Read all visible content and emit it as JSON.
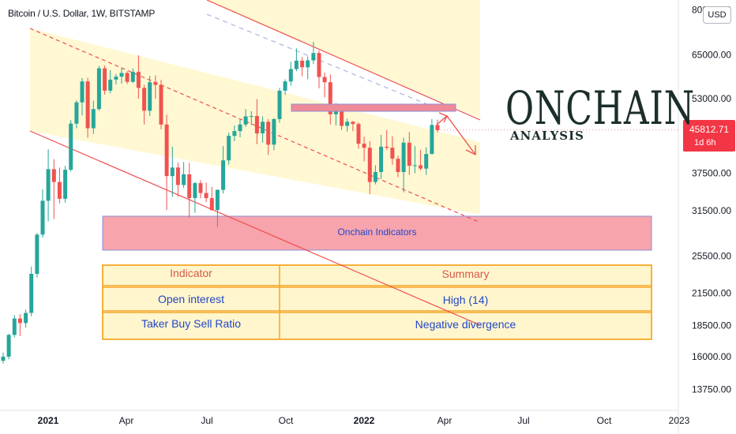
{
  "header": {
    "title": "Bitcoin / U.S. Dollar, 1W, BITSTAMP",
    "currency_button": "USD"
  },
  "current_price": {
    "value": "45812.71",
    "countdown": "1d 6h",
    "color": "#f23645"
  },
  "overlay": {
    "title": "ONCHAIN",
    "subtitle": "ANALYSIS",
    "band_label": "Onchain Indicators",
    "table": {
      "headers": [
        "Indicator",
        "Summary"
      ],
      "rows": [
        [
          "Open interest",
          "High (14)"
        ],
        [
          "Taker Buy Sell Ratio",
          "Negative divergence"
        ]
      ]
    }
  },
  "chart_data": {
    "type": "candlestick",
    "title": "Bitcoin / U.S. Dollar, 1W, BITSTAMP",
    "y_scale": "log",
    "ylim": [
      12500,
      80000
    ],
    "y_ticks": [
      13750,
      16000,
      18500,
      21500,
      25500,
      31500,
      37500,
      45000,
      53000,
      65000,
      80000
    ],
    "y_tick_labels": [
      "13750.00",
      "16000.00",
      "18500.00",
      "21500.00",
      "25500.00",
      "31500.00",
      "37500.00",
      "45000.00",
      "53000.00",
      "65000.00",
      "80000.00"
    ],
    "x_tick_labels": [
      "2021",
      "Apr",
      "Jul",
      "Oct",
      "2022",
      "Apr",
      "Jul",
      "Oct",
      "2023"
    ],
    "up_color": "#26a69a",
    "down_color": "#ef5350",
    "ohlc_weekly": [
      [
        15700,
        16300,
        15500,
        16000
      ],
      [
        16000,
        17800,
        15800,
        17700
      ],
      [
        17700,
        19400,
        17500,
        19100
      ],
      [
        19100,
        19500,
        17600,
        18700
      ],
      [
        18700,
        19900,
        18300,
        19600
      ],
      [
        19600,
        24300,
        19300,
        23500
      ],
      [
        23500,
        28400,
        23100,
        28200
      ],
      [
        28200,
        34800,
        27800,
        33000
      ],
      [
        33000,
        41900,
        30000,
        38200
      ],
      [
        38200,
        40000,
        30300,
        36000
      ],
      [
        36000,
        38500,
        32600,
        33300
      ],
      [
        33300,
        38800,
        32700,
        38100
      ],
      [
        38100,
        48000,
        37800,
        47200
      ],
      [
        47200,
        52600,
        46200,
        52100
      ],
      [
        52100,
        58300,
        49000,
        57400
      ],
      [
        57400,
        58400,
        44200,
        46200
      ],
      [
        46200,
        52500,
        45000,
        50500
      ],
      [
        50500,
        61700,
        50100,
        61000
      ],
      [
        61000,
        61800,
        54000,
        55000
      ],
      [
        55000,
        60500,
        54300,
        57900
      ],
      [
        57900,
        59400,
        56600,
        58700
      ],
      [
        58700,
        61300,
        56800,
        59700
      ],
      [
        59700,
        60200,
        56700,
        57300
      ],
      [
        57300,
        61000,
        57000,
        60000
      ],
      [
        60000,
        64800,
        53000,
        55700
      ],
      [
        55700,
        56500,
        47000,
        50100
      ],
      [
        50100,
        58900,
        48900,
        57200
      ],
      [
        57200,
        59000,
        53000,
        56500
      ],
      [
        56500,
        57800,
        46000,
        47000
      ],
      [
        47000,
        49200,
        31600,
        37000
      ],
      [
        37000,
        42400,
        33600,
        38500
      ],
      [
        38500,
        39400,
        33600,
        35500
      ],
      [
        35500,
        39500,
        35000,
        37300
      ],
      [
        37300,
        39300,
        30500,
        33400
      ],
      [
        33400,
        36000,
        31200,
        35800
      ],
      [
        35800,
        36300,
        33400,
        34200
      ],
      [
        34200,
        35900,
        32800,
        33400
      ],
      [
        33400,
        35200,
        31500,
        31600
      ],
      [
        31600,
        34800,
        29200,
        34700
      ],
      [
        34700,
        42500,
        34100,
        39800
      ],
      [
        39800,
        45300,
        39000,
        44600
      ],
      [
        44600,
        46800,
        43500,
        45600
      ],
      [
        45600,
        48100,
        44300,
        47000
      ],
      [
        47000,
        50500,
        46500,
        48800
      ],
      [
        48800,
        50000,
        46900,
        48900
      ],
      [
        48900,
        52900,
        42900,
        45100
      ],
      [
        45100,
        48800,
        43200,
        47600
      ],
      [
        47600,
        48200,
        40800,
        42800
      ],
      [
        42800,
        48400,
        41700,
        48200
      ],
      [
        48200,
        55700,
        47400,
        55000
      ],
      [
        55000,
        58000,
        53900,
        57400
      ],
      [
        57400,
        62900,
        56300,
        60800
      ],
      [
        60800,
        66900,
        60200,
        63200
      ],
      [
        63200,
        64300,
        58800,
        61300
      ],
      [
        61300,
        64500,
        58000,
        63300
      ],
      [
        63300,
        69000,
        62200,
        65500
      ],
      [
        65500,
        66300,
        55600,
        58600
      ],
      [
        58600,
        59800,
        53300,
        57200
      ],
      [
        57200,
        59300,
        47000,
        49300
      ],
      [
        49300,
        51900,
        46800,
        50100
      ],
      [
        50100,
        51200,
        45800,
        46700
      ],
      [
        46700,
        48300,
        45500,
        47600
      ],
      [
        47600,
        47800,
        45600,
        47100
      ],
      [
        47100,
        47500,
        42000,
        43000
      ],
      [
        43000,
        44400,
        39600,
        42200
      ],
      [
        42200,
        43500,
        34000,
        36000
      ],
      [
        36000,
        38900,
        35600,
        37700
      ],
      [
        37700,
        44800,
        36500,
        42400
      ],
      [
        42400,
        45800,
        41800,
        42200
      ],
      [
        42200,
        44500,
        39000,
        40100
      ],
      [
        40100,
        40700,
        36800,
        37700
      ],
      [
        37700,
        44200,
        34300,
        43200
      ],
      [
        43200,
        45400,
        37200,
        38800
      ],
      [
        38800,
        42500,
        37500,
        38900
      ],
      [
        38900,
        41800,
        38000,
        38300
      ],
      [
        38300,
        42300,
        37200,
        41000
      ],
      [
        41000,
        48200,
        40900,
        46900
      ],
      [
        46900,
        48100,
        45300,
        45800
      ]
    ]
  }
}
